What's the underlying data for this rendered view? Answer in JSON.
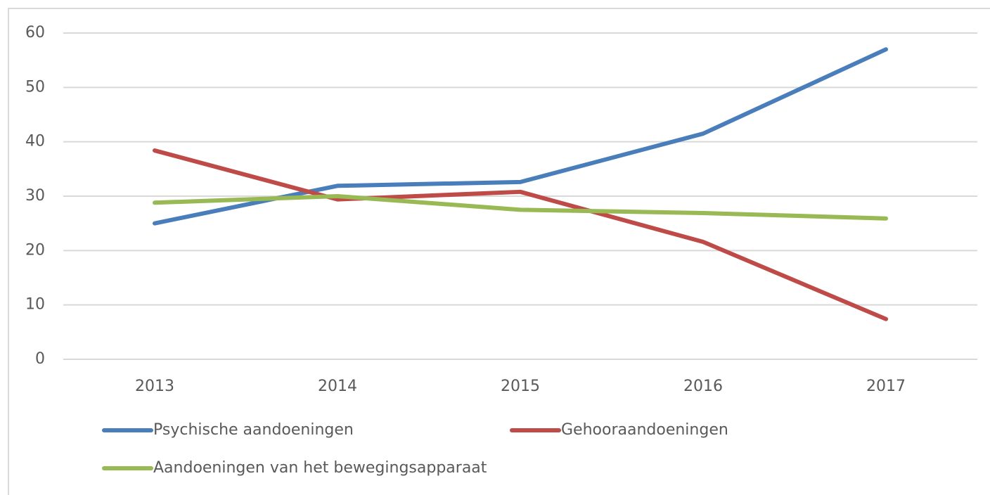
{
  "chart_data": {
    "type": "line",
    "categories": [
      "2013",
      "2014",
      "2015",
      "2016",
      "2017"
    ],
    "series": [
      {
        "name": "Psychische aandoeningen",
        "color": "#4a7ebb",
        "values": [
          25,
          31.9,
          32.6,
          41.5,
          57
        ]
      },
      {
        "name": "Gehooraandoeningen",
        "color": "#be4b48",
        "values": [
          38.4,
          29.4,
          30.8,
          21.6,
          7.4
        ]
      },
      {
        "name": "Aandoeningen van het bewegingsapparaat",
        "color": "#98b954",
        "values": [
          28.8,
          30,
          27.5,
          26.9,
          25.9
        ]
      }
    ],
    "ylim": [
      0,
      60
    ],
    "yticks": [
      0,
      10,
      20,
      30,
      40,
      50,
      60
    ],
    "grid": true,
    "legend": "bottom"
  }
}
